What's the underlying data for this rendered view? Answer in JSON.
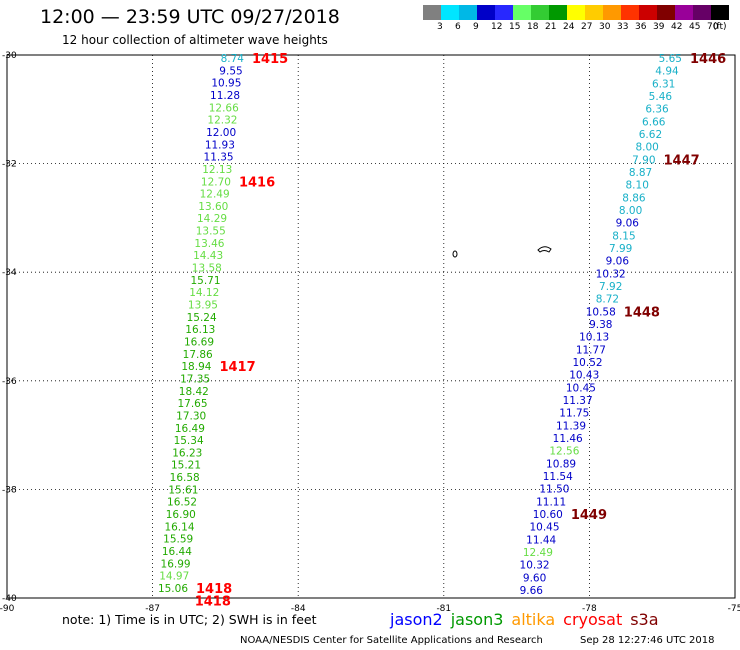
{
  "header": {
    "title": "12:00 — 23:59 UTC 09/27/2018",
    "subtitle": "12 hour collection of altimeter wave heights"
  },
  "color_scale": {
    "unit_label": "(ft)",
    "colors": [
      "#808080",
      "#00e5ff",
      "#00b8e6",
      "#0000c8",
      "#2828ff",
      "#66ff66",
      "#33cc33",
      "#009900",
      "#ffff00",
      "#ffcc00",
      "#ff9900",
      "#ff3300",
      "#cc0000",
      "#800000",
      "#990099",
      "#660066",
      "#000000"
    ],
    "labels": [
      "3",
      "6",
      "9",
      "12",
      "15",
      "18",
      "21",
      "24",
      "27",
      "30",
      "33",
      "36",
      "39",
      "42",
      "45",
      "70"
    ]
  },
  "axes": {
    "lat_labels": [
      "-30",
      "-32",
      "-34",
      "-36",
      "-38",
      "-40"
    ],
    "lon_labels": [
      "-90",
      "-87",
      "-84",
      "-81",
      "-78",
      "-75"
    ]
  },
  "palette": {
    "cyan": "#18b0c8",
    "blue": "#0000c8",
    "lgreen": "#66dd44",
    "green": "#22aa00",
    "orbit_red": "#ff0000",
    "orbit_dark": "#800000"
  },
  "track_west": {
    "orbit_labels": [
      {
        "text": "1415",
        "after_index": 0
      },
      {
        "text": "1416",
        "after_index": 10
      },
      {
        "text": "1417",
        "after_index": 25
      },
      {
        "text": "1418",
        "after_index": 43
      },
      {
        "text": "1418",
        "after_index": 44
      }
    ],
    "observations": [
      {
        "v": "8.74",
        "c": "cyan"
      },
      {
        "v": "9.55",
        "c": "blue"
      },
      {
        "v": "10.95",
        "c": "blue"
      },
      {
        "v": "11.28",
        "c": "blue"
      },
      {
        "v": "12.66",
        "c": "lgreen"
      },
      {
        "v": "12.32",
        "c": "lgreen"
      },
      {
        "v": "12.00",
        "c": "blue"
      },
      {
        "v": "11.93",
        "c": "blue"
      },
      {
        "v": "11.35",
        "c": "blue"
      },
      {
        "v": "12.13",
        "c": "lgreen"
      },
      {
        "v": "12.70",
        "c": "lgreen"
      },
      {
        "v": "12.49",
        "c": "lgreen"
      },
      {
        "v": "13.60",
        "c": "lgreen"
      },
      {
        "v": "14.29",
        "c": "lgreen"
      },
      {
        "v": "13.55",
        "c": "lgreen"
      },
      {
        "v": "13.46",
        "c": "lgreen"
      },
      {
        "v": "14.43",
        "c": "lgreen"
      },
      {
        "v": "13.58",
        "c": "lgreen"
      },
      {
        "v": "15.71",
        "c": "green"
      },
      {
        "v": "14.12",
        "c": "lgreen"
      },
      {
        "v": "13.95",
        "c": "lgreen"
      },
      {
        "v": "15.24",
        "c": "green"
      },
      {
        "v": "16.13",
        "c": "green"
      },
      {
        "v": "16.69",
        "c": "green"
      },
      {
        "v": "17.86",
        "c": "green"
      },
      {
        "v": "18.94",
        "c": "green"
      },
      {
        "v": "17.35",
        "c": "green"
      },
      {
        "v": "18.42",
        "c": "green"
      },
      {
        "v": "17.65",
        "c": "green"
      },
      {
        "v": "17.30",
        "c": "green"
      },
      {
        "v": "16.49",
        "c": "green"
      },
      {
        "v": "15.34",
        "c": "green"
      },
      {
        "v": "16.23",
        "c": "green"
      },
      {
        "v": "15.21",
        "c": "green"
      },
      {
        "v": "16.58",
        "c": "green"
      },
      {
        "v": "15.61",
        "c": "green"
      },
      {
        "v": "16.52",
        "c": "green"
      },
      {
        "v": "16.90",
        "c": "green"
      },
      {
        "v": "16.14",
        "c": "green"
      },
      {
        "v": "15.59",
        "c": "green"
      },
      {
        "v": "16.44",
        "c": "green"
      },
      {
        "v": "16.99",
        "c": "green"
      },
      {
        "v": "14.97",
        "c": "lgreen"
      },
      {
        "v": "15.06",
        "c": "green"
      }
    ]
  },
  "track_east": {
    "orbit_labels": [
      {
        "text": "1446",
        "after_index": 0
      },
      {
        "text": "1447",
        "after_index": 8
      },
      {
        "text": "1448",
        "after_index": 20
      },
      {
        "text": "1449",
        "after_index": 36
      }
    ],
    "observations": [
      {
        "v": "5.65",
        "c": "cyan"
      },
      {
        "v": "4.94",
        "c": "cyan"
      },
      {
        "v": "6.31",
        "c": "cyan"
      },
      {
        "v": "5.46",
        "c": "cyan"
      },
      {
        "v": "6.36",
        "c": "cyan"
      },
      {
        "v": "6.66",
        "c": "cyan"
      },
      {
        "v": "6.62",
        "c": "cyan"
      },
      {
        "v": "8.00",
        "c": "cyan"
      },
      {
        "v": "7.90",
        "c": "cyan"
      },
      {
        "v": "8.87",
        "c": "cyan"
      },
      {
        "v": "8.10",
        "c": "cyan"
      },
      {
        "v": "8.86",
        "c": "cyan"
      },
      {
        "v": "8.00",
        "c": "cyan"
      },
      {
        "v": "9.06",
        "c": "blue"
      },
      {
        "v": "8.15",
        "c": "cyan"
      },
      {
        "v": "7.99",
        "c": "cyan"
      },
      {
        "v": "9.06",
        "c": "blue"
      },
      {
        "v": "10.32",
        "c": "blue"
      },
      {
        "v": "7.92",
        "c": "cyan"
      },
      {
        "v": "8.72",
        "c": "cyan"
      },
      {
        "v": "10.58",
        "c": "blue"
      },
      {
        "v": "9.38",
        "c": "blue"
      },
      {
        "v": "10.13",
        "c": "blue"
      },
      {
        "v": "11.77",
        "c": "blue"
      },
      {
        "v": "10.52",
        "c": "blue"
      },
      {
        "v": "10.43",
        "c": "blue"
      },
      {
        "v": "10.45",
        "c": "blue"
      },
      {
        "v": "11.37",
        "c": "blue"
      },
      {
        "v": "11.75",
        "c": "blue"
      },
      {
        "v": "11.39",
        "c": "blue"
      },
      {
        "v": "11.46",
        "c": "blue"
      },
      {
        "v": "12.56",
        "c": "lgreen"
      },
      {
        "v": "10.89",
        "c": "blue"
      },
      {
        "v": "11.54",
        "c": "blue"
      },
      {
        "v": "11.50",
        "c": "blue"
      },
      {
        "v": "11.11",
        "c": "blue"
      },
      {
        "v": "10.60",
        "c": "blue"
      },
      {
        "v": "10.45",
        "c": "blue"
      },
      {
        "v": "11.44",
        "c": "blue"
      },
      {
        "v": "12.49",
        "c": "lgreen"
      },
      {
        "v": "10.32",
        "c": "blue"
      },
      {
        "v": "9.60",
        "c": "blue"
      },
      {
        "v": "9.66",
        "c": "blue"
      }
    ]
  },
  "footer": {
    "note": "note: 1) Time is in UTC; 2) SWH is in feet",
    "satellites": [
      {
        "name": "jason2",
        "color": "#0000ff"
      },
      {
        "name": "jason3",
        "color": "#009900"
      },
      {
        "name": "altika",
        "color": "#ff9900"
      },
      {
        "name": "cryosat",
        "color": "#ff0000"
      },
      {
        "name": "s3a",
        "color": "#800000"
      }
    ],
    "credit": "NOAA/NESDIS Center for Satellite Applications and Research",
    "timestamp": "Sep 28 12:27:46 UTC 2018"
  }
}
